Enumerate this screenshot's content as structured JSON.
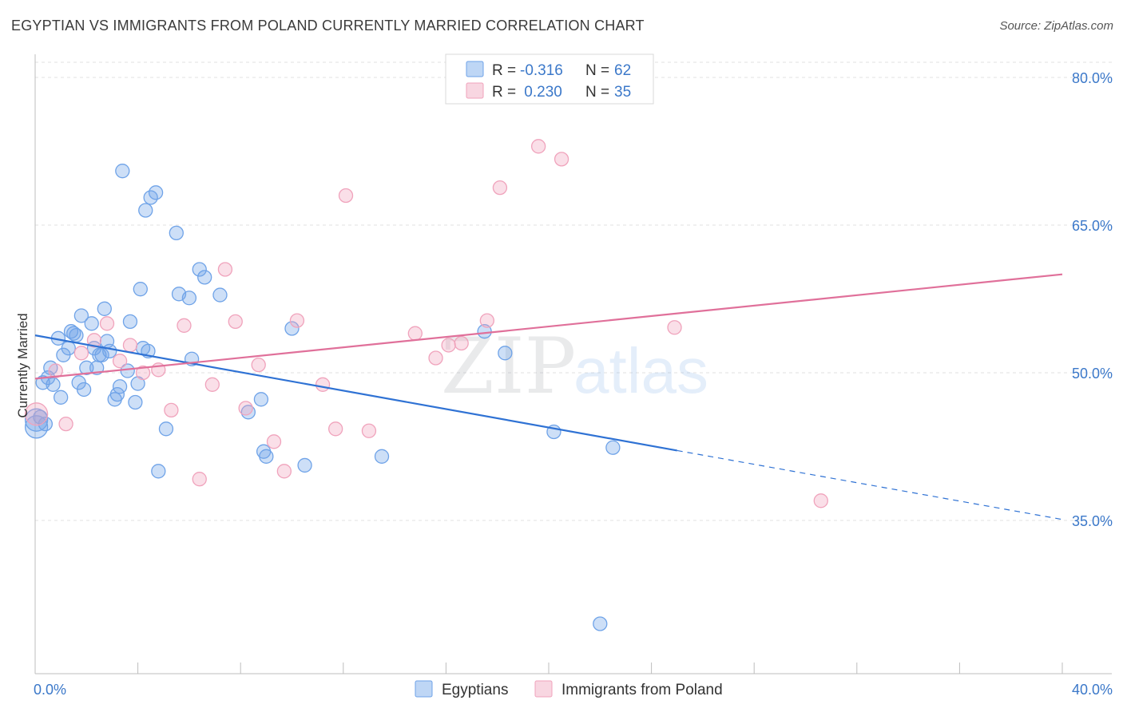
{
  "title": "EGYPTIAN VS IMMIGRANTS FROM POLAND CURRENTLY MARRIED CORRELATION CHART",
  "source": "Source: ZipAtlas.com",
  "watermark": {
    "zip": "ZIP",
    "atlas": "atlas"
  },
  "chart_data": {
    "type": "scatter",
    "ylabel": "Currently Married",
    "xlim": [
      0,
      40
    ],
    "ylim": [
      20,
      82
    ],
    "x_ticks": [
      "0.0%",
      "40.0%"
    ],
    "y_ticks": [
      {
        "value": 80,
        "label": "80.0%"
      },
      {
        "value": 65,
        "label": "65.0%"
      },
      {
        "value": 50,
        "label": "50.0%"
      },
      {
        "value": 35,
        "label": "35.0%"
      }
    ],
    "legend_stats": [
      {
        "r_label": "R = ",
        "r": "-0.316",
        "n_label": "N = ",
        "n": "62",
        "color": "#6fa3e8"
      },
      {
        "r_label": "R = ",
        "r": " 0.230",
        "n_label": "N = ",
        "n": "35",
        "color": "#f0a3bc"
      }
    ],
    "series": [
      {
        "name": "Egyptians",
        "color": "#6fa3e8",
        "line_color": "#2f72d4",
        "trend": {
          "x0": 0,
          "y0": 53.8,
          "x1": 25,
          "y1": 42.1,
          "x_dash_end": 40,
          "y_dash_end": 35.1
        },
        "points": [
          [
            0.05,
            44.5
          ],
          [
            0.2,
            45.5
          ],
          [
            0.3,
            49.0
          ],
          [
            0.4,
            44.8
          ],
          [
            0.5,
            49.5
          ],
          [
            0.6,
            50.5
          ],
          [
            0.7,
            48.8
          ],
          [
            0.9,
            53.5
          ],
          [
            1.0,
            47.5
          ],
          [
            1.1,
            51.8
          ],
          [
            1.3,
            52.5
          ],
          [
            1.4,
            54.2
          ],
          [
            1.6,
            53.8
          ],
          [
            1.7,
            49.0
          ],
          [
            1.8,
            55.8
          ],
          [
            1.9,
            48.3
          ],
          [
            2.0,
            50.5
          ],
          [
            2.2,
            55.0
          ],
          [
            2.3,
            52.5
          ],
          [
            2.4,
            50.5
          ],
          [
            2.5,
            51.8
          ],
          [
            2.6,
            51.8
          ],
          [
            2.7,
            56.5
          ],
          [
            2.8,
            53.2
          ],
          [
            2.9,
            52.2
          ],
          [
            3.1,
            47.3
          ],
          [
            3.2,
            47.8
          ],
          [
            3.3,
            48.6
          ],
          [
            3.4,
            70.5
          ],
          [
            3.6,
            50.2
          ],
          [
            3.7,
            55.2
          ],
          [
            3.9,
            47.0
          ],
          [
            4.0,
            48.9
          ],
          [
            4.1,
            58.5
          ],
          [
            4.2,
            52.5
          ],
          [
            4.3,
            66.5
          ],
          [
            4.4,
            52.2
          ],
          [
            4.5,
            67.8
          ],
          [
            4.7,
            68.3
          ],
          [
            4.8,
            40.0
          ],
          [
            5.1,
            44.3
          ],
          [
            5.5,
            64.2
          ],
          [
            5.6,
            58.0
          ],
          [
            6.0,
            57.6
          ],
          [
            6.1,
            51.4
          ],
          [
            6.4,
            60.5
          ],
          [
            6.6,
            59.7
          ],
          [
            7.2,
            57.9
          ],
          [
            8.3,
            46.0
          ],
          [
            8.8,
            47.3
          ],
          [
            8.9,
            42.0
          ],
          [
            9.0,
            41.5
          ],
          [
            10.0,
            54.5
          ],
          [
            10.5,
            40.6
          ],
          [
            13.5,
            41.5
          ],
          [
            17.5,
            54.2
          ],
          [
            18.3,
            52.0
          ],
          [
            20.2,
            44.0
          ],
          [
            22.0,
            24.5
          ],
          [
            22.5,
            42.4
          ],
          [
            0.05,
            45.2
          ],
          [
            1.5,
            54.0
          ]
        ]
      },
      {
        "name": "Immigrants from Poland",
        "color": "#f0a3bc",
        "line_color": "#e0709a",
        "trend": {
          "x0": 0,
          "y0": 49.4,
          "x1": 40,
          "y1": 60.0
        },
        "points": [
          [
            0.05,
            45.8
          ],
          [
            0.8,
            50.2
          ],
          [
            1.2,
            44.8
          ],
          [
            1.8,
            52.0
          ],
          [
            2.3,
            53.3
          ],
          [
            2.8,
            55.0
          ],
          [
            3.3,
            51.2
          ],
          [
            3.7,
            52.8
          ],
          [
            4.2,
            50.0
          ],
          [
            4.8,
            50.3
          ],
          [
            5.3,
            46.2
          ],
          [
            5.8,
            54.8
          ],
          [
            6.4,
            39.2
          ],
          [
            6.9,
            48.8
          ],
          [
            7.4,
            60.5
          ],
          [
            7.8,
            55.2
          ],
          [
            8.2,
            46.4
          ],
          [
            8.7,
            50.8
          ],
          [
            9.3,
            43.0
          ],
          [
            9.7,
            40.0
          ],
          [
            10.2,
            55.3
          ],
          [
            11.2,
            48.8
          ],
          [
            11.7,
            44.3
          ],
          [
            12.1,
            68.0
          ],
          [
            13.0,
            44.1
          ],
          [
            14.8,
            54.0
          ],
          [
            15.6,
            51.5
          ],
          [
            16.1,
            52.8
          ],
          [
            16.6,
            53.0
          ],
          [
            17.6,
            55.3
          ],
          [
            18.1,
            68.8
          ],
          [
            19.6,
            73.0
          ],
          [
            20.5,
            71.7
          ],
          [
            24.9,
            54.6
          ],
          [
            30.6,
            37.0
          ]
        ]
      }
    ]
  }
}
